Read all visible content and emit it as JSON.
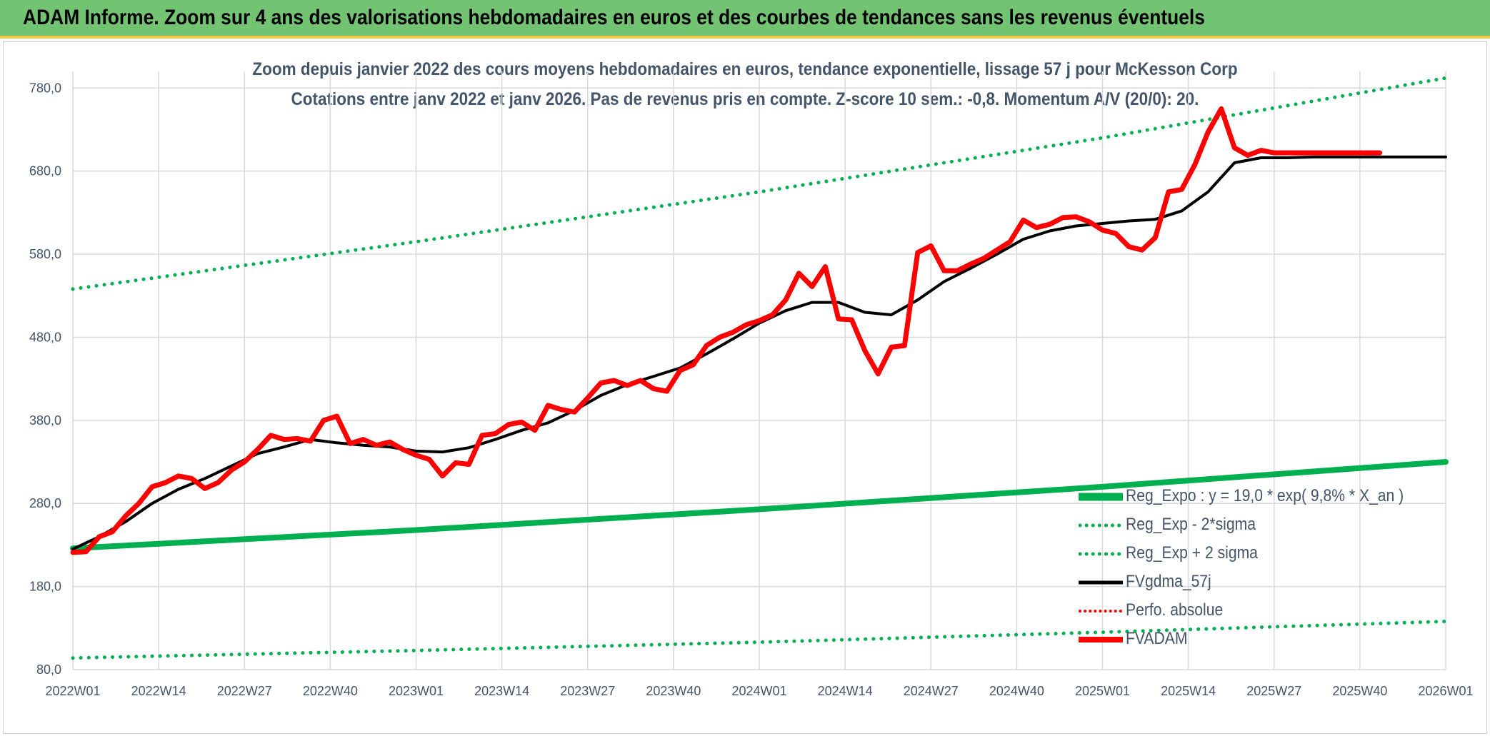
{
  "banner": {
    "title": "ADAM Informe. Zoom sur 4 ans des valorisations hebdomadaires en euros et des courbes de tendances sans les revenus éventuels"
  },
  "chart_data": {
    "type": "line",
    "title": "Zoom depuis janvier 2022 des cours moyens hebdomadaires en euros, tendance exponentielle, lissage 57 j pour McKesson Corp",
    "subtitle": "Cotations entre janv 2022 et janv 2026. Pas de revenus pris en compte. Z-score 10 sem.: -0,8. Momentum A/V (20/0): 20.",
    "xlabel": "",
    "ylabel": "",
    "x_labels": [
      "2022W01",
      "2022W14",
      "2022W27",
      "2022W40",
      "2023W01",
      "2023W14",
      "2023W27",
      "2023W40",
      "2024W01",
      "2024W14",
      "2024W27",
      "2024W40",
      "2025W01",
      "2025W14",
      "2025W27",
      "2025W40",
      "2026W01"
    ],
    "x_range": [
      0,
      208
    ],
    "ylim": [
      80,
      800
    ],
    "yticks": [
      80,
      180,
      280,
      380,
      480,
      580,
      680,
      780
    ],
    "ytick_labels": [
      "80,0",
      "180,0",
      "280,0",
      "380,0",
      "480,0",
      "580,0",
      "680,0",
      "780,0"
    ],
    "grid": true,
    "legend_position": "bottom-right",
    "series": [
      {
        "name": "Reg_Expo : y = 19,0 * exp( 9,8% *  X_an )",
        "style": "solid-thick",
        "color": "#00b050",
        "x": [
          0,
          52,
          104,
          156,
          208
        ],
        "values": [
          226,
          248,
          273,
          300,
          330
        ]
      },
      {
        "name": "Reg_Exp - 2*sigma",
        "style": "dotted",
        "color": "#00b050",
        "x": [
          0,
          52,
          104,
          156,
          208
        ],
        "values": [
          94,
          103,
          113,
          125,
          138
        ]
      },
      {
        "name": "Reg_Exp + 2 sigma",
        "style": "dotted",
        "color": "#00b050",
        "x": [
          0,
          52,
          104,
          156,
          208
        ],
        "values": [
          538,
          595,
          655,
          720,
          792
        ]
      },
      {
        "name": "FVgdma_57j",
        "style": "solid",
        "color": "#000000",
        "x": [
          0,
          4,
          8,
          12,
          16,
          20,
          24,
          28,
          32,
          36,
          40,
          44,
          48,
          52,
          56,
          60,
          64,
          68,
          72,
          76,
          80,
          84,
          88,
          92,
          96,
          100,
          104,
          108,
          112,
          116,
          120,
          124,
          128,
          132,
          136,
          140,
          144,
          148,
          152,
          156,
          160,
          164,
          168,
          172,
          176,
          180,
          184,
          188,
          192,
          196,
          200,
          204,
          208
        ],
        "values": [
          225,
          240,
          258,
          280,
          297,
          310,
          325,
          340,
          348,
          357,
          353,
          350,
          348,
          343,
          342,
          347,
          357,
          368,
          377,
          392,
          410,
          423,
          433,
          443,
          460,
          478,
          497,
          512,
          522,
          522,
          510,
          507,
          525,
          547,
          563,
          580,
          598,
          608,
          614,
          617,
          620,
          622,
          632,
          655,
          690,
          696,
          696,
          697,
          697,
          697,
          697,
          697,
          697
        ]
      },
      {
        "name": "Perfo. absolue",
        "style": "dotted",
        "color": "#ff0000",
        "x": [],
        "values": []
      },
      {
        "name": "FVADAM",
        "style": "solid-thick",
        "color": "#ff0000",
        "x": [
          0,
          2,
          4,
          6,
          8,
          10,
          12,
          14,
          16,
          18,
          20,
          22,
          24,
          26,
          28,
          30,
          32,
          34,
          36,
          38,
          40,
          42,
          44,
          46,
          48,
          50,
          52,
          54,
          56,
          58,
          60,
          62,
          64,
          66,
          68,
          70,
          72,
          74,
          76,
          78,
          80,
          82,
          84,
          86,
          88,
          90,
          92,
          94,
          96,
          98,
          100,
          102,
          104,
          106,
          108,
          110,
          112,
          114,
          116,
          118,
          120,
          122,
          124,
          126,
          128,
          130,
          132,
          134,
          136,
          138,
          140,
          142,
          144,
          146,
          148,
          150,
          152,
          154,
          156,
          158,
          160,
          162,
          164,
          166,
          168,
          170,
          172,
          174,
          176,
          178,
          180,
          182,
          184,
          186,
          188,
          190,
          192,
          194,
          196,
          198
        ],
        "values": [
          221,
          222,
          240,
          246,
          265,
          280,
          300,
          305,
          313,
          310,
          298,
          305,
          320,
          330,
          345,
          362,
          357,
          358,
          355,
          380,
          385,
          352,
          357,
          350,
          354,
          345,
          338,
          333,
          313,
          329,
          327,
          362,
          364,
          375,
          378,
          368,
          398,
          393,
          390,
          407,
          425,
          428,
          422,
          428,
          418,
          415,
          440,
          447,
          470,
          480,
          486,
          495,
          500,
          507,
          525,
          557,
          541,
          565,
          502,
          501,
          464,
          436,
          468,
          470,
          582,
          590,
          560,
          560,
          568,
          575,
          585,
          595,
          621,
          612,
          616,
          624,
          625,
          619,
          609,
          605,
          589,
          585,
          600,
          655,
          658,
          688,
          727,
          755,
          708,
          699,
          705,
          702,
          702,
          702,
          702,
          702,
          702,
          702,
          702,
          702
        ]
      }
    ]
  },
  "legend": {
    "items": [
      {
        "label": "Reg_Expo : y = 19,0 * exp( 9,8% *  X_an )"
      },
      {
        "label": "Reg_Exp - 2*sigma"
      },
      {
        "label": "Reg_Exp + 2 sigma"
      },
      {
        "label": "FVgdma_57j"
      },
      {
        "label": "Perfo. absolue"
      },
      {
        "label": "FVADAM"
      }
    ]
  }
}
